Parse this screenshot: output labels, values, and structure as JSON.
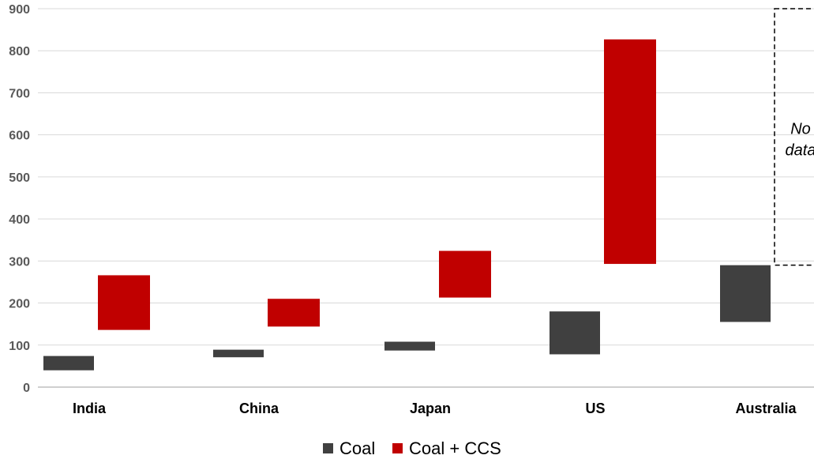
{
  "chart_data": {
    "type": "bar",
    "subtype": "floating-range",
    "categories": [
      "India",
      "China",
      "Japan",
      "US",
      "Australia"
    ],
    "series": [
      {
        "name": "Coal",
        "color": "#404040",
        "ranges": [
          [
            40,
            74
          ],
          [
            71,
            89
          ],
          [
            87,
            108
          ],
          [
            78,
            180
          ],
          [
            155,
            290
          ]
        ]
      },
      {
        "name": "Coal + CCS",
        "color": "#c00000",
        "ranges": [
          [
            136,
            266
          ],
          [
            144,
            210
          ],
          [
            213,
            324
          ],
          [
            293,
            827
          ],
          null
        ]
      }
    ],
    "ylim": [
      0,
      900
    ],
    "yticks": [
      0,
      100,
      200,
      300,
      400,
      500,
      600,
      700,
      800,
      900
    ],
    "ytick_labels": [
      "0",
      "100",
      "200",
      "300",
      "400",
      "500",
      "600",
      "700",
      "800",
      "900"
    ],
    "grid": true,
    "legend_position": "bottom",
    "annotations": [
      {
        "text_lines": [
          "No",
          "data"
        ],
        "category": "Australia",
        "series": "Coal + CCS",
        "range": [
          290,
          900
        ],
        "style": "dashed-box"
      }
    ]
  }
}
